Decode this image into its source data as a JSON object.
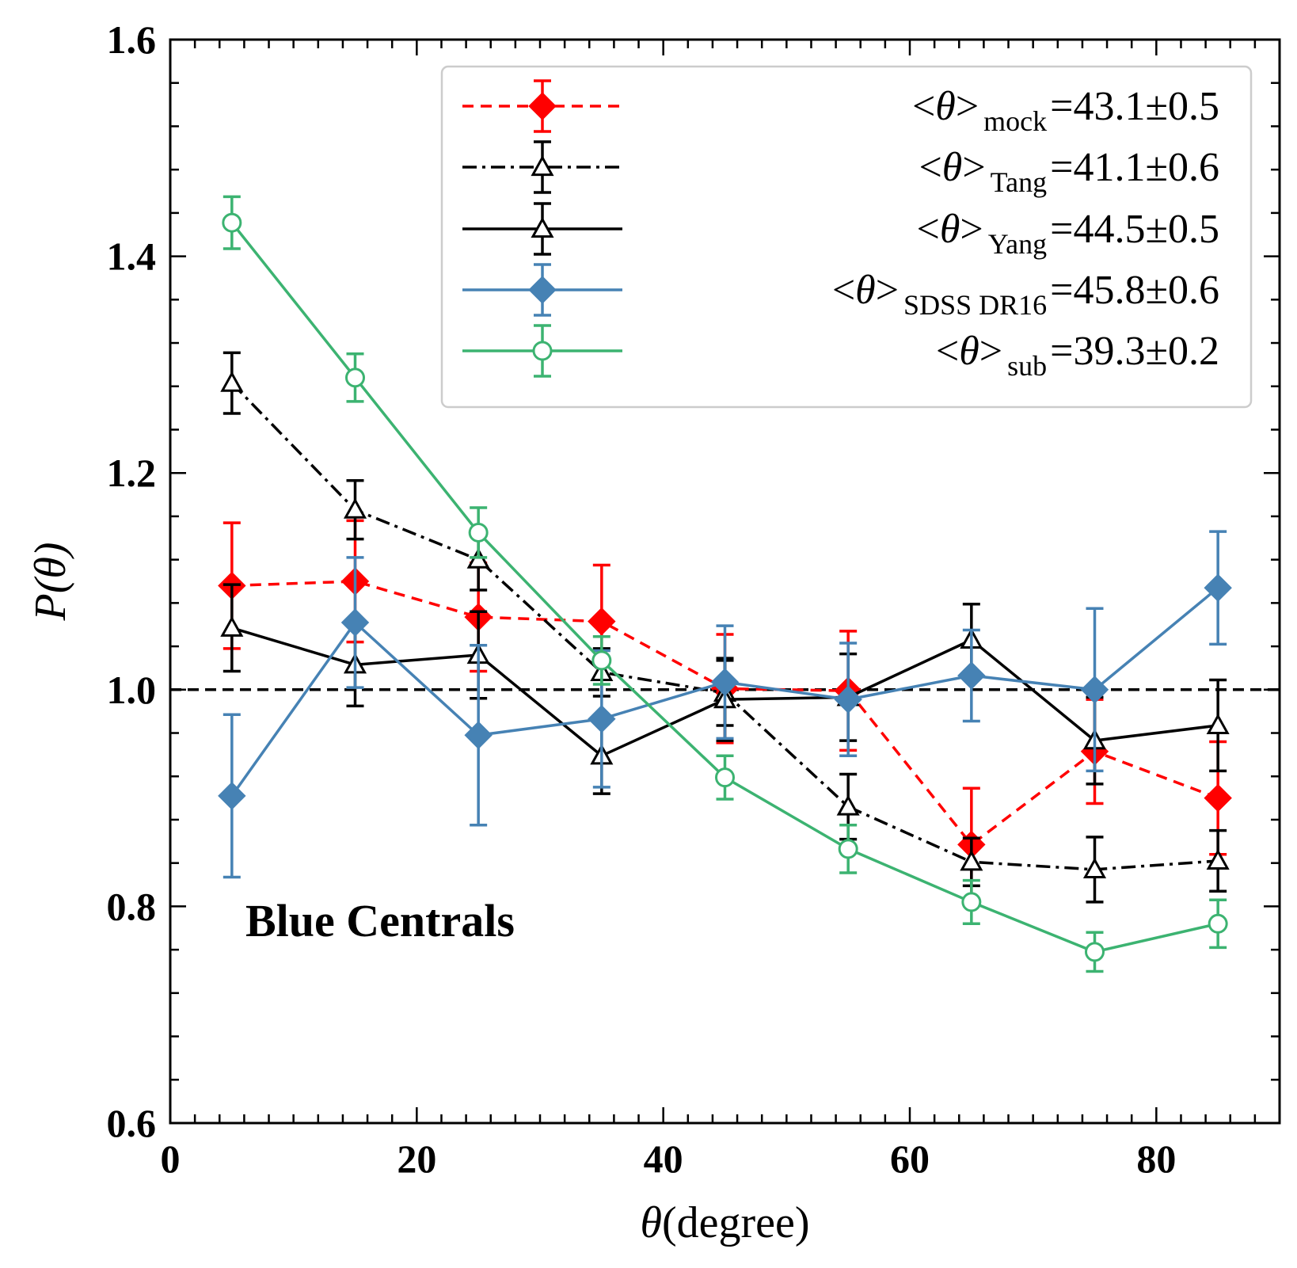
{
  "chart_data": {
    "type": "line",
    "title": "",
    "xlabel": "θ(degree)",
    "ylabel": "P(θ)",
    "xlim": [
      0,
      90
    ],
    "ylim": [
      0.6,
      1.6
    ],
    "x_ticks": [
      0,
      20,
      40,
      60,
      80
    ],
    "y_ticks": [
      0.6,
      0.8,
      1.0,
      1.2,
      1.4,
      1.6
    ],
    "x_tick_labels": [
      "0",
      "20",
      "40",
      "60",
      "80"
    ],
    "y_tick_labels": [
      "0.6",
      "0.8",
      "1.0",
      "1.2",
      "1.4",
      "1.6"
    ],
    "reference_line": {
      "y": 1.0,
      "style": "dashed",
      "color": "#000000"
    },
    "annotation": "Blue Centrals",
    "legend_position": "top-right",
    "x": [
      5,
      15,
      25,
      35,
      45,
      55,
      65,
      75,
      85
    ],
    "series": [
      {
        "name": "mock",
        "legend_prefix": "<θ>",
        "legend_sub": "mock",
        "legend_value": "=43.1±0.5",
        "color": "#ff0000",
        "linestyle": "dashed",
        "marker": "diamond-filled",
        "values": [
          1.096,
          1.1,
          1.067,
          1.063,
          1.001,
          0.999,
          0.857,
          0.943,
          0.9
        ],
        "errors": [
          0.058,
          0.056,
          0.05,
          0.052,
          0.05,
          0.055,
          0.052,
          0.048,
          0.052
        ]
      },
      {
        "name": "Tang",
        "legend_prefix": "<θ>",
        "legend_sub": "Tang",
        "legend_value": "=41.1±0.6",
        "color": "#000000",
        "linestyle": "dashdot",
        "marker": "triangle-open",
        "values": [
          1.283,
          1.166,
          1.12,
          1.016,
          0.997,
          0.892,
          0.841,
          0.834,
          0.842
        ],
        "errors": [
          0.028,
          0.027,
          0.028,
          0.022,
          0.03,
          0.03,
          0.022,
          0.03,
          0.028
        ]
      },
      {
        "name": "Yang",
        "legend_prefix": "<θ>",
        "legend_sub": "Yang",
        "legend_value": "=44.5±0.5",
        "color": "#000000",
        "linestyle": "solid",
        "marker": "triangle-open",
        "values": [
          1.057,
          1.023,
          1.032,
          0.939,
          0.991,
          0.993,
          1.046,
          0.953,
          0.967
        ],
        "errors": [
          0.04,
          0.038,
          0.04,
          0.035,
          0.038,
          0.04,
          0.033,
          0.04,
          0.042
        ]
      },
      {
        "name": "SDSS DR16",
        "legend_prefix": "<θ>",
        "legend_sub": "SDSS DR16",
        "legend_value": "=45.8±0.6",
        "color": "#4682b4",
        "linestyle": "solid",
        "marker": "diamond-filled",
        "values": [
          0.902,
          1.062,
          0.958,
          0.973,
          1.007,
          0.991,
          1.013,
          1.0,
          1.094
        ],
        "errors": [
          0.075,
          0.06,
          0.083,
          0.063,
          0.052,
          0.052,
          0.042,
          0.075,
          0.052
        ]
      },
      {
        "name": "sub",
        "legend_prefix": "<θ>",
        "legend_sub": "sub",
        "legend_value": "=39.3±0.2",
        "color": "#3cb371",
        "linestyle": "solid",
        "marker": "circle-open",
        "values": [
          1.431,
          1.288,
          1.145,
          1.027,
          0.919,
          0.853,
          0.804,
          0.758,
          0.784
        ],
        "errors": [
          0.024,
          0.022,
          0.023,
          0.022,
          0.02,
          0.022,
          0.02,
          0.018,
          0.022
        ]
      }
    ]
  }
}
